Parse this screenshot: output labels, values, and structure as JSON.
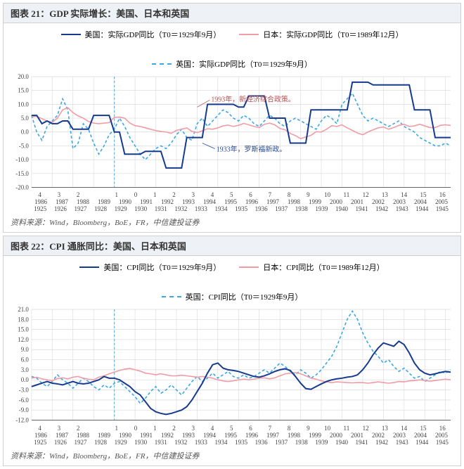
{
  "colors": {
    "us": "#163a8e",
    "jp": "#f19ba5",
    "uk": "#3aa8e6",
    "grid": "#d8d8d8",
    "axis": "#666",
    "t0": "#60b0e0",
    "annot": "#b85050",
    "annot2": "#2a4da0"
  },
  "panel1": {
    "title": "图表 21：GDP 实际增长：美国、日本和英国",
    "legend_us": "美国：实际GDP同比（T0＝1929年9月）",
    "legend_jp": "日本：实际GDP同比（T0＝1989年12月）",
    "legend_uk": "英国：实际GDP同比（T0＝1929年9月）",
    "ylim": [
      -20,
      20
    ],
    "ystep": 5,
    "annot_top": "1993年，新经济综合政策。",
    "annot_bot": "1933年，罗斯福新政。",
    "source": "资料来源：Wind，Bloomberg，BoE，FR，中信建投证券",
    "us": [
      6,
      6,
      3,
      4,
      3,
      3,
      4,
      4,
      1,
      1,
      1,
      1,
      6,
      6,
      6,
      6,
      0,
      0,
      -8,
      -8,
      -8,
      -8,
      -7,
      -7,
      -7,
      -7,
      -13,
      -13,
      -13,
      -13,
      -2,
      -2,
      -2,
      -2,
      10,
      10,
      10,
      10,
      10,
      10,
      9,
      9,
      13,
      13,
      13,
      13,
      5,
      5,
      5,
      5,
      -4,
      -4,
      -4,
      -4,
      8,
      8,
      8,
      8,
      8,
      8,
      8,
      8,
      18,
      18,
      18,
      18,
      17,
      17,
      17,
      17,
      17,
      17,
      17,
      17,
      8,
      8,
      8,
      8,
      -2,
      -2,
      -2,
      -2
    ],
    "jp": [
      5.5,
      5.7,
      4.8,
      4.0,
      3.5,
      5.0,
      8.0,
      8.8,
      7.0,
      5.8,
      5.0,
      3.8,
      3.2,
      3.0,
      3.2,
      3.4,
      5.3,
      5.4,
      5.0,
      3.2,
      2.3,
      2.0,
      1.5,
      1.0,
      0.5,
      0.2,
      0.0,
      -0.5,
      0.6,
      1.0,
      1.5,
      0.2,
      -0.2,
      0.4,
      1.2,
      1.0,
      1.5,
      2.2,
      2.5,
      2.0,
      2.4,
      3.1,
      2.6,
      2.0,
      1.6,
      2.8,
      3.2,
      2.6,
      1.3,
      0.8,
      -0.5,
      -1.3,
      -2.4,
      -1.8,
      -1.2,
      0.1,
      0.0,
      1.0,
      2.3,
      2.0,
      2.6,
      1.5,
      0.6,
      -0.4,
      -1.0,
      0.0,
      0.8,
      1.5,
      1.8,
      1.0,
      1.6,
      2.4,
      2.8,
      2.0,
      2.2,
      2.8,
      2.2,
      1.6,
      1.6,
      2.4,
      2.6,
      2.4
    ],
    "uk": [
      6.0,
      0.0,
      -3.0,
      2.0,
      4.0,
      6.0,
      12.0,
      8.0,
      -6.0,
      -4.0,
      3.0,
      1.0,
      -4.0,
      -8.0,
      -5.0,
      -1.0,
      1.0,
      5.0,
      2.0,
      -2.0,
      -5.0,
      -8.0,
      -10.0,
      -8.0,
      -6.0,
      -5.0,
      -6.0,
      -4.0,
      -1.0,
      1.0,
      -2.0,
      -3.0,
      3.0,
      5.0,
      2.0,
      4.0,
      6.0,
      8.0,
      7.0,
      5.0,
      4.0,
      6.0,
      5.0,
      3.0,
      2.0,
      4.0,
      6.0,
      5.0,
      3.0,
      2.0,
      4.0,
      5.0,
      4.0,
      3.0,
      2.0,
      1.0,
      4.0,
      6.0,
      5.0,
      3.0,
      10.0,
      12.0,
      14.0,
      10.0,
      6.0,
      4.0,
      5.0,
      4.0,
      3.0,
      2.0,
      3.0,
      4.0,
      2.0,
      1.0,
      0.0,
      -2.0,
      -3.0,
      -4.0,
      -5.0,
      -5.0,
      -4.0,
      -5.0
    ]
  },
  "panel2": {
    "title": "图表 22：CPI 通胀同比：美国、日本和英国",
    "legend_us": "美国：CPI同比（T0＝1929年9月）",
    "legend_jp": "日本：CPI同比（T0＝1989年12月）",
    "legend_uk": "英国：CPI同比（T0＝1929年9月）",
    "ylim": [
      -12,
      21
    ],
    "ystep": 3,
    "source": "资料来源：Wind，Bloomberg，BoE，FR，中信建投证券",
    "us": [
      -2.0,
      -1.5,
      -1.0,
      -0.5,
      -1.0,
      -1.2,
      -1.5,
      -1.0,
      -0.5,
      -1.0,
      -1.2,
      -1.0,
      -0.5,
      0.0,
      1.0,
      0.5,
      0.5,
      0.0,
      -1.0,
      -2.0,
      -3.5,
      -4.5,
      -6.5,
      -8.5,
      -9.5,
      -10.0,
      -10.3,
      -10.0,
      -9.5,
      -9.0,
      -8.0,
      -6.0,
      -3.5,
      -1.0,
      2.0,
      4.5,
      5.0,
      3.5,
      3.0,
      2.8,
      2.5,
      2.0,
      1.5,
      1.0,
      0.8,
      1.2,
      1.8,
      2.5,
      3.0,
      3.3,
      2.8,
      1.0,
      -1.0,
      -2.6,
      -2.8,
      -2.0,
      -1.2,
      -0.5,
      0.0,
      0.3,
      0.5,
      0.8,
      1.0,
      1.5,
      3.0,
      5.0,
      7.5,
      9.5,
      11.0,
      10.5,
      10.0,
      11.5,
      10.5,
      8.0,
      5.0,
      3.0,
      2.0,
      1.5,
      1.8,
      2.2,
      2.5,
      2.3
    ],
    "jp": [
      0.5,
      0.8,
      0.3,
      0.0,
      -0.3,
      0.4,
      0.6,
      0.3,
      0.8,
      1.0,
      0.5,
      0.2,
      0.0,
      0.8,
      1.2,
      1.8,
      2.3,
      2.8,
      3.2,
      3.4,
      3.0,
      2.6,
      2.0,
      1.8,
      1.5,
      1.8,
      1.5,
      1.2,
      1.2,
      1.4,
      1.2,
      1.0,
      0.8,
      1.0,
      0.8,
      0.5,
      0.0,
      -0.3,
      -0.5,
      -0.3,
      0.0,
      0.2,
      0.0,
      0.2,
      0.5,
      0.6,
      0.3,
      0.6,
      1.2,
      1.8,
      2.0,
      2.2,
      1.8,
      1.2,
      0.5,
      0.2,
      -0.3,
      -0.6,
      -0.8,
      -0.6,
      -0.7,
      -0.8,
      -0.9,
      -0.8,
      -0.8,
      -1.0,
      -0.8,
      -0.6,
      -0.8,
      -1.0,
      -0.8,
      -0.5,
      -0.6,
      -0.3,
      -0.2,
      0.0,
      -0.2,
      -0.4,
      -0.2,
      0.0,
      0.2,
      0.0
    ],
    "uk": [
      1.0,
      0.5,
      -1.0,
      -2.0,
      -0.5,
      1.5,
      0.0,
      -1.0,
      -2.5,
      -1.0,
      0.5,
      -0.5,
      -2.0,
      -3.0,
      -1.5,
      -2.5,
      -1.0,
      -0.5,
      -2.0,
      -3.5,
      -5.0,
      -7.0,
      -5.5,
      -3.5,
      -2.0,
      -4.0,
      -3.0,
      -1.5,
      -3.0,
      -4.5,
      -2.5,
      -0.5,
      1.0,
      -0.5,
      0.5,
      2.0,
      0.5,
      1.5,
      2.5,
      1.0,
      0.5,
      1.5,
      0.5,
      1.0,
      2.0,
      3.0,
      2.0,
      3.5,
      5.0,
      4.0,
      2.5,
      1.5,
      3.0,
      2.0,
      0.5,
      1.5,
      3.0,
      5.0,
      7.0,
      10.0,
      14.0,
      18.0,
      20.5,
      18.0,
      14.0,
      11.0,
      8.5,
      7.0,
      5.0,
      6.0,
      4.0,
      2.5,
      3.5,
      2.0,
      0.5,
      1.0,
      -0.5,
      0.5,
      1.5,
      2.5,
      2.0,
      3.0
    ]
  },
  "xrow1": [
    "4",
    "3",
    "2",
    "",
    "1",
    "0",
    "1",
    "2",
    "3",
    "4",
    "5",
    "6",
    "7",
    "8",
    "9",
    "10",
    "11",
    "12",
    "13",
    "14",
    "15",
    "16"
  ],
  "xrow2": [
    "1986",
    "1987",
    "1988",
    "1989",
    "1990",
    "1991",
    "1992",
    "1993",
    "1994",
    "1995",
    "1996",
    "1997",
    "1998",
    "1999",
    "2000",
    "2001",
    "2002",
    "2003",
    "2004",
    "2005"
  ],
  "xrow3": [
    "1925",
    "1926",
    "1927",
    "1928",
    "1929",
    "1930",
    "1931",
    "1932",
    "1933",
    "1934",
    "1935",
    "1936",
    "1937",
    "1938",
    "1939",
    "1940",
    "1941",
    "1942",
    "1943",
    "1944",
    "1945"
  ]
}
